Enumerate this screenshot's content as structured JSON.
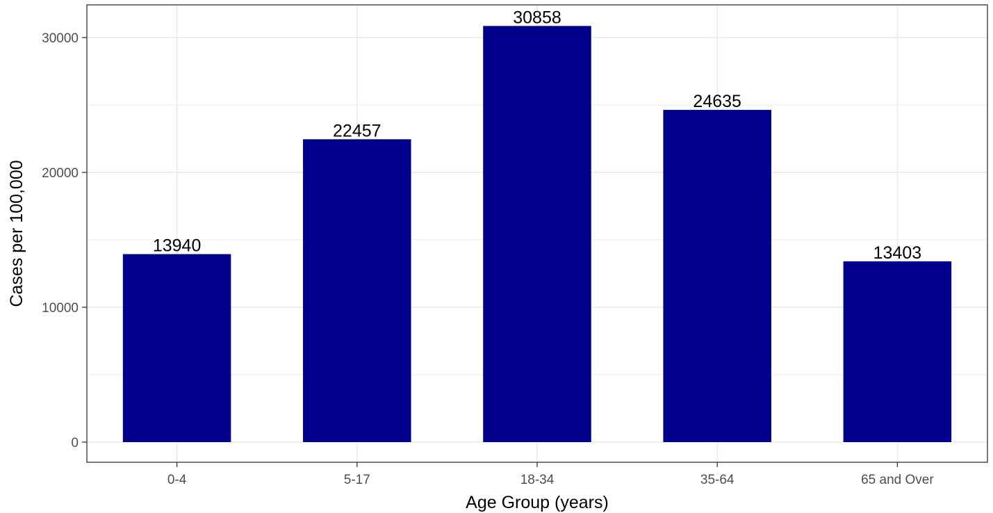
{
  "chart_data": {
    "type": "bar",
    "title": "",
    "xlabel": "Age Group (years)",
    "ylabel": "Cases per 100,000",
    "categories": [
      "0-4",
      "5-17",
      "18-34",
      "35-64",
      "65 and Over"
    ],
    "values": [
      13940,
      22457,
      30858,
      24635,
      13403
    ],
    "data_labels": [
      "13940",
      "22457",
      "30858",
      "24635",
      "13403"
    ],
    "y_ticks": [
      0,
      10000,
      20000,
      30000
    ],
    "y_tick_labels": [
      "0",
      "10000",
      "20000",
      "30000"
    ],
    "ylim": [
      -1500,
      32400
    ],
    "grid": true,
    "bar_color": "#00008b"
  }
}
